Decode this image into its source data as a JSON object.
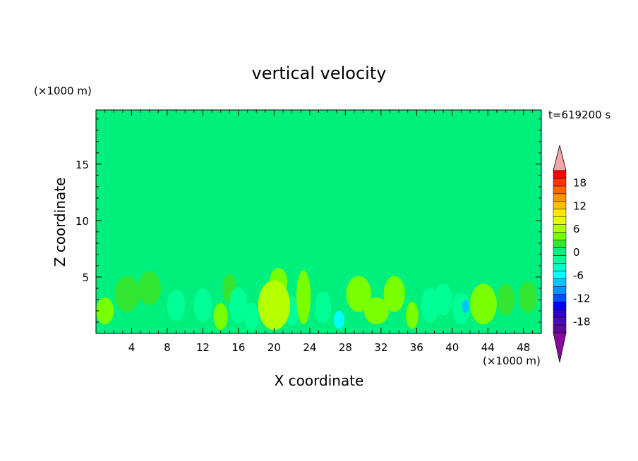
{
  "chart_data": {
    "type": "heatmap",
    "title": "vertical velocity",
    "xlabel": "X coordinate",
    "ylabel": "Z coordinate",
    "x_unit": "(×1000 m)",
    "y_unit": "(×1000 m)",
    "time_label": "t=619200 s",
    "xlim": [
      0,
      50
    ],
    "ylim": [
      0,
      19.8
    ],
    "x_ticks": [
      4,
      8,
      12,
      16,
      20,
      24,
      28,
      32,
      36,
      40,
      44,
      48
    ],
    "y_ticks": [
      5,
      10,
      15
    ],
    "colorbar": {
      "ticks": [
        18,
        12,
        6,
        0,
        -6,
        -12,
        -18
      ],
      "min": -21,
      "max": 21,
      "step": 2,
      "extend": "both",
      "colors_low_to_high": [
        "#5a0a96",
        "#4b0ab4",
        "#2d00c8",
        "#0000ff",
        "#0050ff",
        "#0096ff",
        "#00c8ff",
        "#00ffff",
        "#00ffc8",
        "#00ff96",
        "#00f07d",
        "#32e632",
        "#78ff00",
        "#b4ff00",
        "#e6ff00",
        "#ffe600",
        "#ffbe00",
        "#ff9600",
        "#ff6400",
        "#ff3200",
        "#ff0000"
      ],
      "over_color": "#f4a6a6",
      "under_color": "#8a0aa0"
    },
    "field": {
      "background_value": 0,
      "features": [
        {
          "x": 3,
          "z": 17.5,
          "w": 2.6,
          "h": 2.0,
          "value": 0.5
        },
        {
          "x": 25,
          "z": 17.8,
          "w": 2.4,
          "h": 1.3,
          "value": 0.5
        },
        {
          "x": 42,
          "z": 18.2,
          "w": 4.0,
          "h": 1.8,
          "value": 0.5
        },
        {
          "x": 20,
          "z": 13.2,
          "w": 9.0,
          "h": 1.6,
          "value": 0.6
        },
        {
          "x": 36,
          "z": 14.0,
          "w": 6.0,
          "h": 1.8,
          "value": 0.6
        },
        {
          "x": 46,
          "z": 14.5,
          "w": 4.0,
          "h": 1.8,
          "value": 0.5
        },
        {
          "x": 5,
          "z": 11.0,
          "w": 5.0,
          "h": 2.0,
          "value": 0.7
        },
        {
          "x": 14,
          "z": 10.5,
          "w": 4.5,
          "h": 1.8,
          "value": 0.6
        },
        {
          "x": 36,
          "z": 10.0,
          "w": 5.0,
          "h": 2.2,
          "value": 0.6
        },
        {
          "x": 44,
          "z": 9.5,
          "w": 3.0,
          "h": 1.8,
          "value": 0.6
        },
        {
          "x": 8,
          "z": 6.5,
          "w": 3.0,
          "h": 1.5,
          "value": 0.8
        },
        {
          "x": 30,
          "z": 7.5,
          "w": 4.0,
          "h": 1.6,
          "value": 0.7
        },
        {
          "x": 46,
          "z": 6.0,
          "w": 3.0,
          "h": 1.4,
          "value": 0.8
        },
        {
          "x": 1.0,
          "z": 2.0,
          "w": 1.0,
          "h": 1.2,
          "value": 3.5
        },
        {
          "x": 3.5,
          "z": 3.5,
          "w": 1.4,
          "h": 1.6,
          "value": 1.3
        },
        {
          "x": 6.0,
          "z": 4.0,
          "w": 1.3,
          "h": 1.5,
          "value": 1.8
        },
        {
          "x": 9.0,
          "z": 2.5,
          "w": 1.0,
          "h": 1.4,
          "value": -1.6
        },
        {
          "x": 12.0,
          "z": 2.5,
          "w": 1.0,
          "h": 1.5,
          "value": -1.8
        },
        {
          "x": 14.0,
          "z": 1.5,
          "w": 0.8,
          "h": 1.2,
          "value": 3.5
        },
        {
          "x": 15.0,
          "z": 4.0,
          "w": 0.8,
          "h": 1.3,
          "value": 2.0
        },
        {
          "x": 16.0,
          "z": 2.5,
          "w": 1.0,
          "h": 1.6,
          "value": -2.2
        },
        {
          "x": 17.5,
          "z": 1.5,
          "w": 0.8,
          "h": 1.2,
          "value": -2.8
        },
        {
          "x": 20.0,
          "z": 2.5,
          "w": 1.8,
          "h": 2.2,
          "value": 5.0
        },
        {
          "x": 20.5,
          "z": 4.6,
          "w": 1.0,
          "h": 1.2,
          "value": 3.0
        },
        {
          "x": 22.0,
          "z": 2.0,
          "w": 0.8,
          "h": 1.3,
          "value": -2.6
        },
        {
          "x": 23.3,
          "z": 3.2,
          "w": 0.8,
          "h": 2.4,
          "value": 3.8
        },
        {
          "x": 25.5,
          "z": 2.3,
          "w": 0.9,
          "h": 1.4,
          "value": -1.8
        },
        {
          "x": 27.3,
          "z": 1.2,
          "w": 0.6,
          "h": 0.8,
          "value": -7.0
        },
        {
          "x": 29.5,
          "z": 3.5,
          "w": 1.4,
          "h": 1.6,
          "value": 3.6
        },
        {
          "x": 31.5,
          "z": 2.0,
          "w": 1.4,
          "h": 1.2,
          "value": 3.2
        },
        {
          "x": 33.5,
          "z": 3.5,
          "w": 1.2,
          "h": 1.6,
          "value": 3.0
        },
        {
          "x": 35.5,
          "z": 1.6,
          "w": 0.7,
          "h": 1.2,
          "value": 3.8
        },
        {
          "x": 37.5,
          "z": 2.5,
          "w": 1.0,
          "h": 1.5,
          "value": -2.0
        },
        {
          "x": 39.0,
          "z": 3.0,
          "w": 1.0,
          "h": 1.4,
          "value": -1.4
        },
        {
          "x": 41.0,
          "z": 2.2,
          "w": 1.0,
          "h": 1.4,
          "value": -3.0
        },
        {
          "x": 41.5,
          "z": 2.4,
          "w": 0.4,
          "h": 0.6,
          "value": -8.0
        },
        {
          "x": 43.5,
          "z": 2.6,
          "w": 1.5,
          "h": 1.8,
          "value": 4.4
        },
        {
          "x": 46.0,
          "z": 3.0,
          "w": 1.0,
          "h": 1.4,
          "value": 2.2
        },
        {
          "x": 48.5,
          "z": 3.2,
          "w": 1.0,
          "h": 1.4,
          "value": 2.2
        }
      ]
    }
  }
}
